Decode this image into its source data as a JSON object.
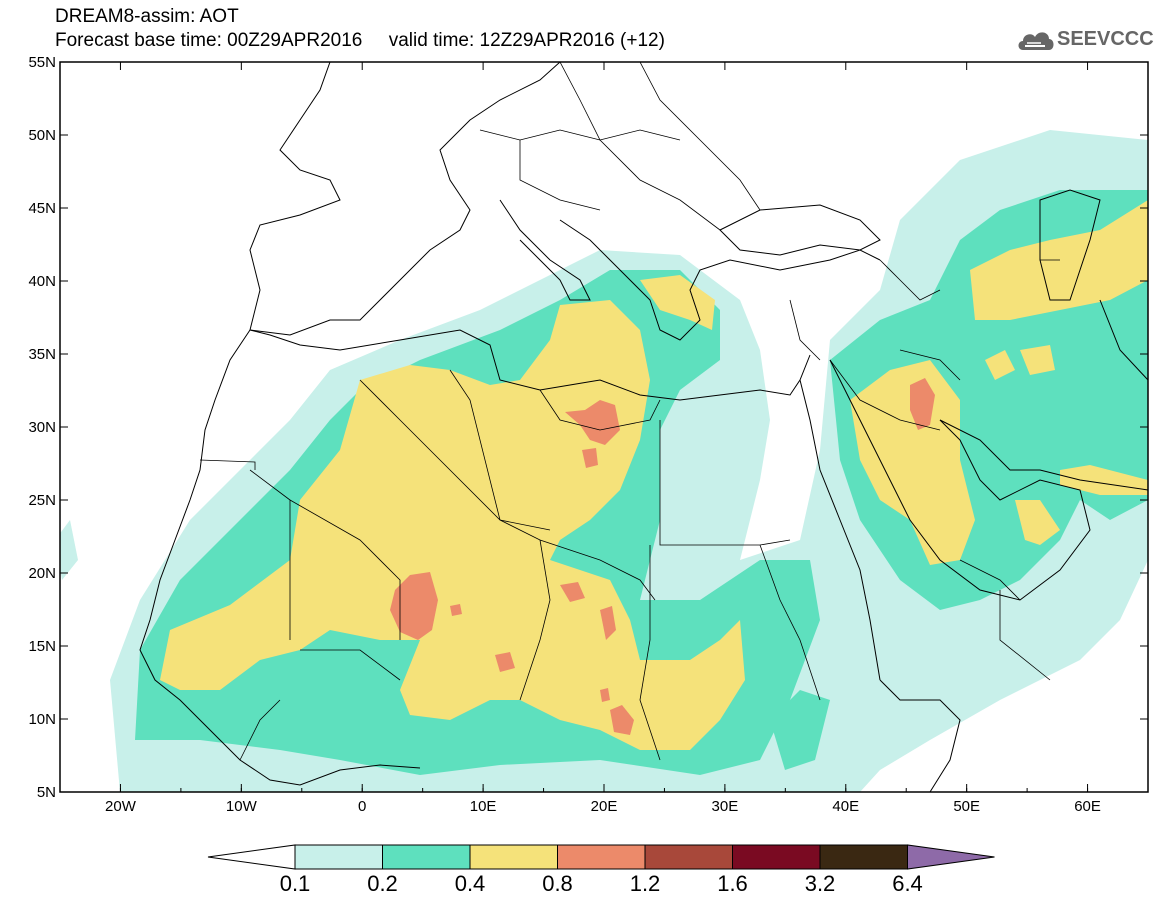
{
  "header": {
    "line1": "DREAM8-assim: AOT",
    "line2": "Forecast base time: 00Z29APR2016     valid time: 12Z29APR2016 (+12)"
  },
  "logo": {
    "text": "SEEVCCC",
    "icon": "cloud-icon"
  },
  "map": {
    "lon_range": [
      -25,
      65
    ],
    "lat_range": [
      5,
      55
    ],
    "x_ticks": [
      {
        "lon": -20,
        "label": "20W"
      },
      {
        "lon": -10,
        "label": "10W"
      },
      {
        "lon": 0,
        "label": "0"
      },
      {
        "lon": 10,
        "label": "10E"
      },
      {
        "lon": 20,
        "label": "20E"
      },
      {
        "lon": 30,
        "label": "30E"
      },
      {
        "lon": 40,
        "label": "40E"
      },
      {
        "lon": 50,
        "label": "50E"
      },
      {
        "lon": 60,
        "label": "60E"
      }
    ],
    "y_ticks": [
      {
        "lat": 55,
        "label": "55N"
      },
      {
        "lat": 50,
        "label": "50N"
      },
      {
        "lat": 45,
        "label": "45N"
      },
      {
        "lat": 40,
        "label": "40N"
      },
      {
        "lat": 35,
        "label": "35N"
      },
      {
        "lat": 30,
        "label": "30N"
      },
      {
        "lat": 25,
        "label": "25N"
      },
      {
        "lat": 20,
        "label": "20N"
      },
      {
        "lat": 15,
        "label": "15N"
      },
      {
        "lat": 10,
        "label": "10N"
      },
      {
        "lat": 5,
        "label": "5N"
      }
    ]
  },
  "colorbar": {
    "colors": [
      "#c8f0ea",
      "#5ee0be",
      "#f5e27a",
      "#ec8a6a",
      "#a8483a",
      "#7a0a22",
      "#3a2812",
      "#8e6aa8"
    ],
    "labels": [
      "0.1",
      "0.2",
      "0.4",
      "0.8",
      "1.2",
      "1.6",
      "3.2",
      "6.4"
    ]
  }
}
